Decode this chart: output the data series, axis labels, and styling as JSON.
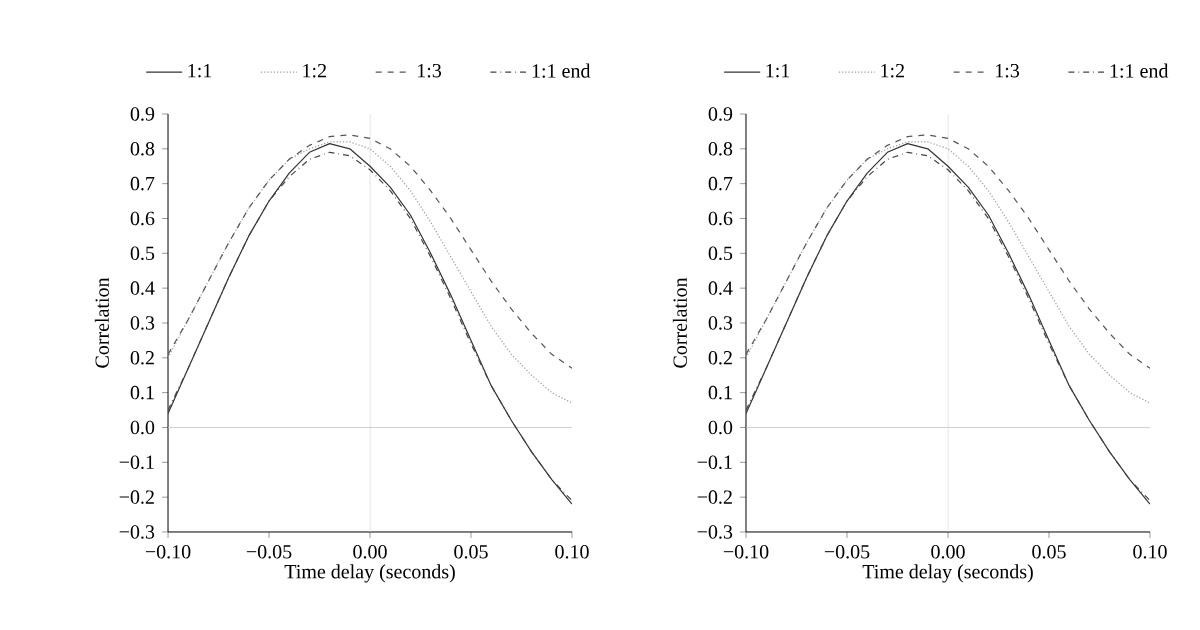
{
  "chart_data": [
    {
      "type": "line",
      "xlabel": "Time delay (seconds)",
      "ylabel": "Correlation",
      "x": [
        -0.1,
        -0.09,
        -0.08,
        -0.07,
        -0.06,
        -0.05,
        -0.04,
        -0.03,
        -0.02,
        -0.01,
        0.0,
        0.01,
        0.02,
        0.03,
        0.04,
        0.05,
        0.06,
        0.07,
        0.08,
        0.09,
        0.1
      ],
      "series": [
        {
          "name": "1:1",
          "color": "#333333",
          "line_style": "solid",
          "values": [
            0.04,
            0.17,
            0.3,
            0.43,
            0.55,
            0.65,
            0.73,
            0.79,
            0.815,
            0.8,
            0.75,
            0.69,
            0.61,
            0.5,
            0.38,
            0.25,
            0.12,
            0.02,
            -0.07,
            -0.15,
            -0.22
          ]
        },
        {
          "name": "1:2",
          "color": "#999999",
          "line_style": "dotted",
          "values": [
            0.2,
            0.31,
            0.42,
            0.53,
            0.63,
            0.71,
            0.77,
            0.8,
            0.82,
            0.82,
            0.8,
            0.75,
            0.68,
            0.59,
            0.49,
            0.39,
            0.29,
            0.21,
            0.15,
            0.1,
            0.07
          ]
        },
        {
          "name": "1:3",
          "color": "#555555",
          "line_style": "dashed",
          "values": [
            0.21,
            0.31,
            0.42,
            0.53,
            0.63,
            0.71,
            0.77,
            0.81,
            0.835,
            0.84,
            0.83,
            0.8,
            0.75,
            0.68,
            0.6,
            0.51,
            0.42,
            0.34,
            0.27,
            0.21,
            0.17
          ]
        },
        {
          "name": "1:1 end",
          "color": "#444444",
          "line_style": "dashdot",
          "values": [
            0.05,
            0.17,
            0.3,
            0.43,
            0.55,
            0.65,
            0.72,
            0.77,
            0.79,
            0.78,
            0.74,
            0.68,
            0.6,
            0.49,
            0.37,
            0.24,
            0.12,
            0.02,
            -0.07,
            -0.15,
            -0.21
          ]
        }
      ],
      "xlim": [
        -0.1,
        0.1
      ],
      "xticks": [
        {
          "value": -0.1,
          "label": "−0.10"
        },
        {
          "value": -0.05,
          "label": "−0.05"
        },
        {
          "value": 0,
          "label": "0.00"
        },
        {
          "value": 0.05,
          "label": "0.05"
        },
        {
          "value": 0.1,
          "label": "0.10"
        }
      ],
      "ylim": [
        -0.3,
        0.9
      ],
      "yticks": [
        {
          "value": -0.3,
          "label": "−0.3"
        },
        {
          "value": -0.2,
          "label": "−0.2"
        },
        {
          "value": -0.1,
          "label": "−0.1"
        },
        {
          "value": 0,
          "label": "0.0"
        },
        {
          "value": 0.1,
          "label": "0.1"
        },
        {
          "value": 0.2,
          "label": "0.2"
        },
        {
          "value": 0.3,
          "label": "0.3"
        },
        {
          "value": 0.4,
          "label": "0.4"
        },
        {
          "value": 0.5,
          "label": "0.5"
        },
        {
          "value": 0.6,
          "label": "0.6"
        },
        {
          "value": 0.7,
          "label": "0.7"
        },
        {
          "value": 0.8,
          "label": "0.8"
        },
        {
          "value": 0.9,
          "label": "0.9"
        }
      ],
      "ref_lines": [
        {
          "axis": "x",
          "value": 0,
          "color": "#d4d4d4"
        },
        {
          "axis": "y",
          "value": 0,
          "color": "#c4c4c4"
        }
      ],
      "grid": false,
      "legend": "top"
    },
    {
      "type": "line",
      "xlabel": "Time delay (seconds)",
      "ylabel": "Correlation",
      "x": [
        -0.1,
        -0.09,
        -0.08,
        -0.07,
        -0.06,
        -0.05,
        -0.04,
        -0.03,
        -0.02,
        -0.01,
        0.0,
        0.01,
        0.02,
        0.03,
        0.04,
        0.05,
        0.06,
        0.07,
        0.08,
        0.09,
        0.1
      ],
      "series": [
        {
          "name": "1:1",
          "color": "#333333",
          "line_style": "solid",
          "values": [
            0.04,
            0.17,
            0.3,
            0.43,
            0.55,
            0.65,
            0.73,
            0.79,
            0.815,
            0.8,
            0.75,
            0.69,
            0.61,
            0.5,
            0.38,
            0.25,
            0.12,
            0.02,
            -0.07,
            -0.15,
            -0.22
          ]
        },
        {
          "name": "1:2",
          "color": "#999999",
          "line_style": "dotted",
          "values": [
            0.2,
            0.31,
            0.42,
            0.53,
            0.63,
            0.71,
            0.77,
            0.8,
            0.82,
            0.82,
            0.8,
            0.75,
            0.68,
            0.59,
            0.49,
            0.39,
            0.29,
            0.21,
            0.15,
            0.1,
            0.07
          ]
        },
        {
          "name": "1:3",
          "color": "#555555",
          "line_style": "dashed",
          "values": [
            0.21,
            0.31,
            0.42,
            0.53,
            0.63,
            0.71,
            0.77,
            0.81,
            0.835,
            0.84,
            0.83,
            0.8,
            0.75,
            0.68,
            0.6,
            0.51,
            0.42,
            0.34,
            0.27,
            0.21,
            0.17
          ]
        },
        {
          "name": "1:1 end",
          "color": "#444444",
          "line_style": "dashdot",
          "values": [
            0.05,
            0.17,
            0.3,
            0.43,
            0.55,
            0.65,
            0.72,
            0.77,
            0.79,
            0.78,
            0.74,
            0.68,
            0.6,
            0.49,
            0.37,
            0.24,
            0.12,
            0.02,
            -0.07,
            -0.15,
            -0.21
          ]
        }
      ],
      "xlim": [
        -0.1,
        0.1
      ],
      "xticks": [
        {
          "value": -0.1,
          "label": "−0.10"
        },
        {
          "value": -0.05,
          "label": "−0.05"
        },
        {
          "value": 0,
          "label": "0.00"
        },
        {
          "value": 0.05,
          "label": "0.05"
        },
        {
          "value": 0.1,
          "label": "0.10"
        }
      ],
      "ylim": [
        -0.3,
        0.9
      ],
      "yticks": [
        {
          "value": -0.3,
          "label": "−0.3"
        },
        {
          "value": -0.2,
          "label": "−0.2"
        },
        {
          "value": -0.1,
          "label": "−0.1"
        },
        {
          "value": 0,
          "label": "0.0"
        },
        {
          "value": 0.1,
          "label": "0.1"
        },
        {
          "value": 0.2,
          "label": "0.2"
        },
        {
          "value": 0.3,
          "label": "0.3"
        },
        {
          "value": 0.4,
          "label": "0.4"
        },
        {
          "value": 0.5,
          "label": "0.5"
        },
        {
          "value": 0.6,
          "label": "0.6"
        },
        {
          "value": 0.7,
          "label": "0.7"
        },
        {
          "value": 0.8,
          "label": "0.8"
        },
        {
          "value": 0.9,
          "label": "0.9"
        }
      ],
      "ref_lines": [
        {
          "axis": "x",
          "value": 0,
          "color": "#d4d4d4"
        },
        {
          "axis": "y",
          "value": 0,
          "color": "#c4c4c4"
        }
      ],
      "grid": false,
      "legend": "top"
    }
  ]
}
